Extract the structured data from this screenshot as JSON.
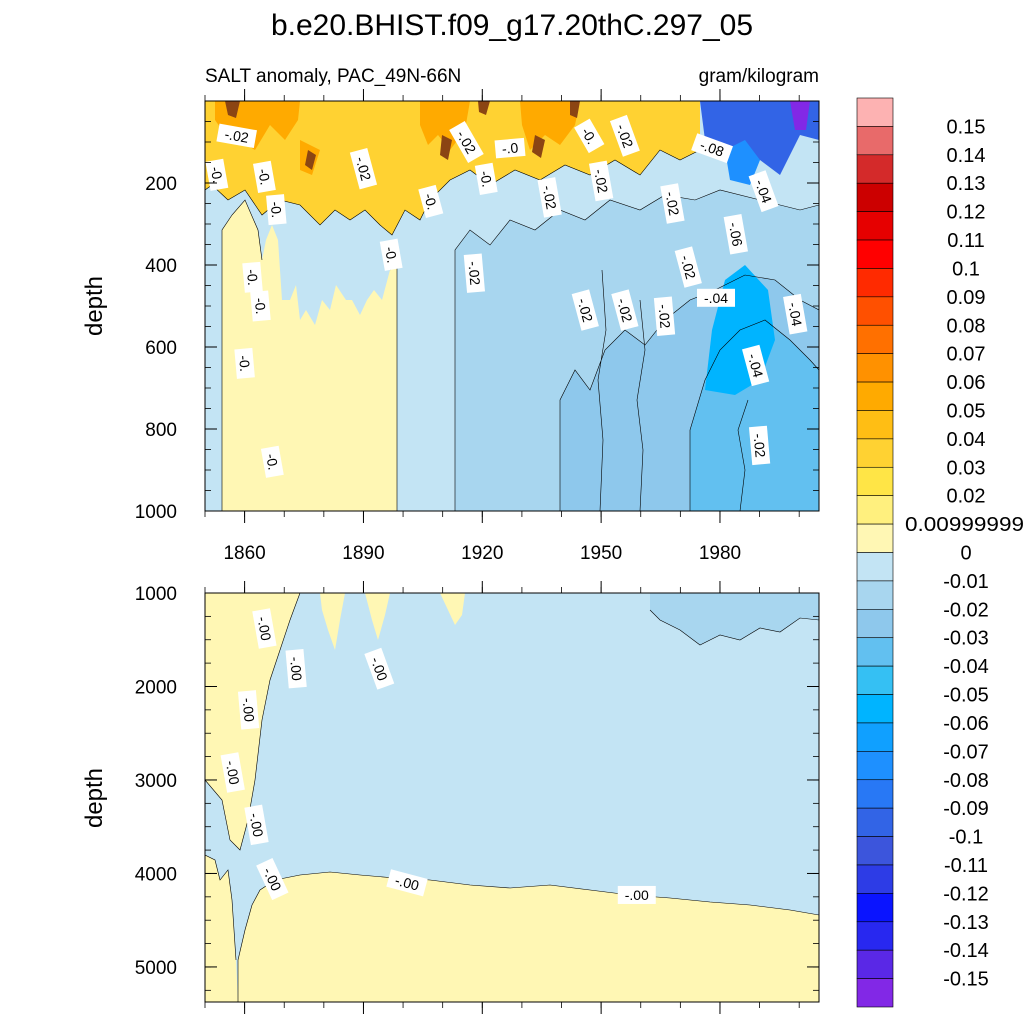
{
  "figure_title": "b.e20.BHIST.f09_g17.20thC.297_05",
  "chart_data": [
    {
      "type": "heatmap",
      "panel": "upper",
      "title": "SALT anomaly, PAC_49N-66N",
      "units": "gram/kilogram",
      "xlabel": "",
      "ylabel": "depth",
      "x_ticks": [
        "1860",
        "1890",
        "1920",
        "1950",
        "1980"
      ],
      "x_tick_values": [
        1860,
        1890,
        1920,
        1950,
        1980
      ],
      "y_ticks": [
        "200",
        "400",
        "600",
        "800",
        "1000"
      ],
      "y_tick_values": [
        200,
        400,
        600,
        800,
        1000
      ],
      "xlim": [
        1850,
        2005
      ],
      "ylim": [
        0,
        1000
      ],
      "contour_labels": [
        {
          "text": "-.02",
          "x": 1858,
          "y": 85,
          "rot": 10
        },
        {
          "text": "-0.",
          "x": 1853,
          "y": 180,
          "rot": 80
        },
        {
          "text": "-0.",
          "x": 1865,
          "y": 185,
          "rot": 80
        },
        {
          "text": "-0.",
          "x": 1868,
          "y": 265,
          "rot": 85
        },
        {
          "text": "-0.",
          "x": 1862,
          "y": 430,
          "rot": 85
        },
        {
          "text": "-0.",
          "x": 1864,
          "y": 500,
          "rot": 85
        },
        {
          "text": "-0.",
          "x": 1860,
          "y": 640,
          "rot": 85
        },
        {
          "text": "-0.",
          "x": 1867,
          "y": 880,
          "rot": 80
        },
        {
          "text": "-.02",
          "x": 1890,
          "y": 165,
          "rot": 75
        },
        {
          "text": "-0.",
          "x": 1897,
          "y": 375,
          "rot": 80
        },
        {
          "text": "-0.",
          "x": 1907,
          "y": 245,
          "rot": 75
        },
        {
          "text": "-.02",
          "x": 1916,
          "y": 100,
          "rot": 60
        },
        {
          "text": "-0.",
          "x": 1921,
          "y": 190,
          "rot": 80
        },
        {
          "text": "-.0",
          "x": 1927,
          "y": 115,
          "rot": -5
        },
        {
          "text": "-.02",
          "x": 1937,
          "y": 235,
          "rot": 80
        },
        {
          "text": "-0.",
          "x": 1947,
          "y": 85,
          "rot": 60
        },
        {
          "text": "-.02",
          "x": 1956,
          "y": 85,
          "rot": 70
        },
        {
          "text": "-.02",
          "x": 1950,
          "y": 195,
          "rot": 80
        },
        {
          "text": "-.02",
          "x": 1918,
          "y": 420,
          "rot": 85
        },
        {
          "text": "-.02",
          "x": 1946,
          "y": 510,
          "rot": 75
        },
        {
          "text": "-.02",
          "x": 1956,
          "y": 510,
          "rot": 75
        },
        {
          "text": "-.02",
          "x": 1966,
          "y": 525,
          "rot": 85
        },
        {
          "text": "-.02",
          "x": 1968,
          "y": 250,
          "rot": 80
        },
        {
          "text": "-.02",
          "x": 1972,
          "y": 405,
          "rot": 75
        },
        {
          "text": "-.08",
          "x": 1978,
          "y": 115,
          "rot": 20
        },
        {
          "text": "-.06",
          "x": 1984,
          "y": 325,
          "rot": 80
        },
        {
          "text": "-.04",
          "x": 1979,
          "y": 480,
          "rot": 0
        },
        {
          "text": "-.04",
          "x": 1991,
          "y": 220,
          "rot": 70
        },
        {
          "text": "-.04",
          "x": 1989,
          "y": 645,
          "rot": 75
        },
        {
          "text": "-.04",
          "x": 1999,
          "y": 520,
          "rot": 80
        },
        {
          "text": "-.02",
          "x": 1990,
          "y": 840,
          "rot": 85
        }
      ]
    },
    {
      "type": "heatmap",
      "panel": "lower",
      "title": "",
      "units": "gram/kilogram",
      "xlabel": "",
      "ylabel": "depth",
      "y_ticks": [
        "1000",
        "2000",
        "3000",
        "4000",
        "5000"
      ],
      "y_tick_values": [
        1000,
        2000,
        3000,
        4000,
        5000
      ],
      "xlim": [
        1850,
        2005
      ],
      "ylim": [
        1000,
        5375
      ],
      "contour_labels": [
        {
          "text": "-.00",
          "x": 1865,
          "y": 1380,
          "rot": 80
        },
        {
          "text": "-.00",
          "x": 1873,
          "y": 1810,
          "rot": 85
        },
        {
          "text": "-.00",
          "x": 1894,
          "y": 1810,
          "rot": 70
        },
        {
          "text": "-.00",
          "x": 1861,
          "y": 2250,
          "rot": 85
        },
        {
          "text": "-.00",
          "x": 1857,
          "y": 2920,
          "rot": 80
        },
        {
          "text": "-.00",
          "x": 1863,
          "y": 3480,
          "rot": 80
        },
        {
          "text": "-.00",
          "x": 1867,
          "y": 4060,
          "rot": 65
        },
        {
          "text": "-.00",
          "x": 1901,
          "y": 4100,
          "rot": 15
        },
        {
          "text": "-.00",
          "x": 1959,
          "y": 4230,
          "rot": 0
        }
      ]
    }
  ],
  "colorbar": {
    "labels": [
      "0.15",
      "0.14",
      "0.13",
      "0.12",
      "0.11",
      "0.1",
      "0.09",
      "0.08",
      "0.07",
      "0.06",
      "0.05",
      "0.04",
      "0.03",
      "0.02",
      "0.00999999",
      "0",
      "-0.01",
      "-0.02",
      "-0.03",
      "-0.04",
      "-0.05",
      "-0.06",
      "-0.07",
      "-0.08",
      "-0.09",
      "-0.1",
      "-0.11",
      "-0.12",
      "-0.13",
      "-0.14",
      "-0.15"
    ],
    "colors": [
      "#FDB2B2",
      "#E86A6A",
      "#D42A2A",
      "#CC0000",
      "#E60000",
      "#FF0000",
      "#FF2A00",
      "#FF5000",
      "#FF7000",
      "#FF9100",
      "#FFAA00",
      "#FFBE14",
      "#FFD232",
      "#FFE546",
      "#FFF07E",
      "#FFF7B4",
      "#C3E4F4",
      "#A8D6EF",
      "#8EC8EC",
      "#62C0F0",
      "#35C0F3",
      "#00B4FF",
      "#10A0FF",
      "#1E90FF",
      "#2878F5",
      "#3264E6",
      "#3C55DC",
      "#2D3CE6",
      "#0A14FF",
      "#2828F0",
      "#5A28E6",
      "#8228E6"
    ]
  }
}
